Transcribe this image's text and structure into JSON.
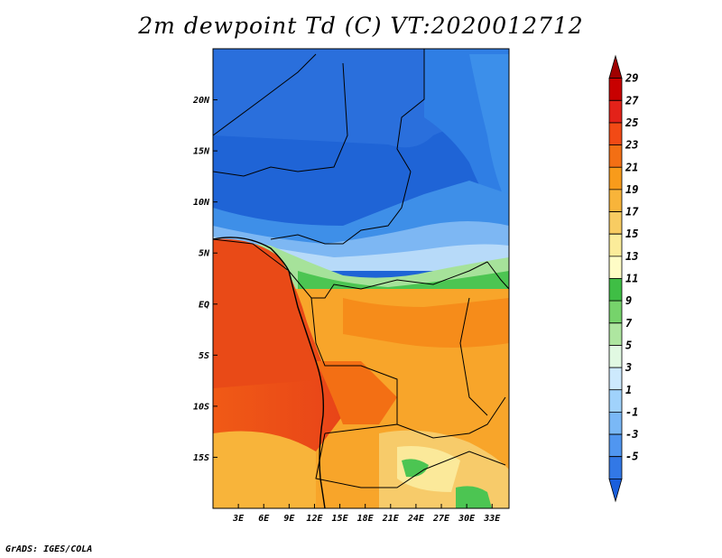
{
  "title": "2m dewpoint Td (C) VT:2020012712",
  "credit": "GrADS: IGES/COLA",
  "map": {
    "lon_range": [
      0,
      35
    ],
    "lat_range": [
      -20,
      25
    ],
    "lon_ticks": [
      "3E",
      "6E",
      "9E",
      "12E",
      "15E",
      "18E",
      "21E",
      "24E",
      "27E",
      "30E",
      "33E"
    ],
    "lon_tick_values": [
      3,
      6,
      9,
      12,
      15,
      18,
      21,
      24,
      27,
      30,
      33
    ],
    "lat_ticks": [
      "20N",
      "15N",
      "10N",
      "5N",
      "EQ",
      "5S",
      "10S",
      "15S"
    ],
    "lat_tick_values": [
      20,
      15,
      10,
      5,
      0,
      -5,
      -10,
      -15
    ]
  },
  "colorbar": {
    "labels": [
      "29",
      "27",
      "25",
      "23",
      "21",
      "19",
      "17",
      "15",
      "13",
      "11",
      "9",
      "7",
      "5",
      "3",
      "1",
      "-1",
      "-3",
      "-5"
    ],
    "colors": [
      "#a00000",
      "#c80000",
      "#e32219",
      "#f24a15",
      "#f36f14",
      "#f89b1b",
      "#f8b43a",
      "#f8cc62",
      "#fbec9a",
      "#fefcc6",
      "#3fbe45",
      "#76d36b",
      "#aee6a0",
      "#e1f9e2",
      "#cde9fd",
      "#a0d2fb",
      "#7ab8f6",
      "#5096f0",
      "#3278e6",
      "#1a5fdc"
    ]
  }
}
